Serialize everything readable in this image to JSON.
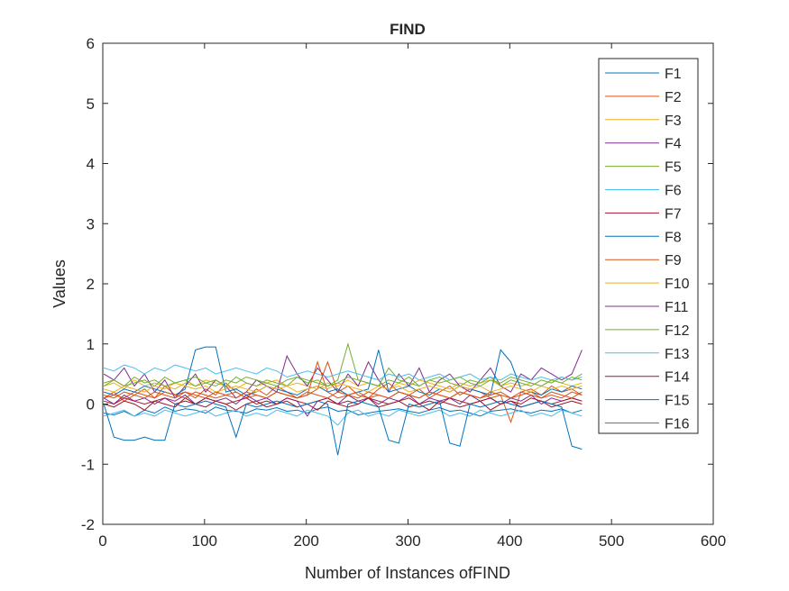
{
  "chart_data": {
    "type": "line",
    "title": "FIND",
    "xlabel": "Number of Instances ofFIND",
    "ylabel": "Values",
    "xlim": [
      0,
      600
    ],
    "ylim": [
      -2,
      6
    ],
    "xticks": [
      0,
      100,
      200,
      300,
      400,
      500,
      600
    ],
    "yticks": [
      -2,
      -1,
      0,
      1,
      2,
      3,
      4,
      5,
      6
    ],
    "grid": false,
    "legend_position": "top-right",
    "series": [
      {
        "name": "F1",
        "color": "#0072BD",
        "values": [
          -0.15,
          -0.18,
          -0.12,
          -0.2,
          -0.1,
          -0.15,
          -0.05,
          -0.12,
          -0.08,
          -0.1,
          -0.15,
          -0.05,
          -0.1,
          -0.12,
          -0.15,
          -0.08,
          -0.1,
          -0.06,
          -0.12,
          -0.1,
          -0.15,
          -0.08,
          -0.05,
          -0.12,
          -0.1,
          -0.18,
          -0.15,
          -0.12,
          -0.1,
          -0.08,
          -0.12,
          -0.15,
          -0.1,
          -0.06,
          -0.12,
          -0.1,
          -0.15,
          -0.2,
          -0.12,
          -0.1,
          -0.08,
          -0.12,
          -0.15,
          -0.1,
          -0.12,
          -0.08,
          -0.15,
          -0.1
        ]
      },
      {
        "name": "F2",
        "color": "#D95319",
        "values": [
          0.1,
          0.2,
          0.05,
          0.15,
          0.25,
          0.1,
          0.3,
          0.15,
          0.2,
          0.1,
          0.25,
          0.15,
          0.35,
          0.2,
          0.1,
          0.25,
          0.15,
          0.3,
          0.2,
          0.1,
          0.15,
          0.25,
          0.7,
          0.2,
          0.3,
          0.15,
          0.1,
          0.25,
          0.35,
          0.2,
          0.15,
          0.25,
          0.1,
          0.2,
          0.3,
          0.15,
          0.25,
          0.2,
          0.1,
          0.15,
          -0.3,
          0.2,
          0.25,
          0.15,
          0.3,
          0.2,
          0.25,
          0.15
        ]
      },
      {
        "name": "F3",
        "color": "#EDB120",
        "values": [
          0.3,
          0.35,
          0.25,
          0.4,
          0.3,
          0.35,
          0.3,
          0.25,
          0.35,
          0.3,
          0.4,
          0.35,
          0.3,
          0.25,
          0.35,
          0.3,
          0.35,
          0.4,
          0.3,
          0.35,
          0.3,
          0.25,
          0.35,
          0.3,
          0.4,
          0.3,
          0.35,
          0.3,
          0.25,
          0.35,
          0.3,
          0.4,
          0.35,
          0.3,
          0.25,
          0.35,
          0.3,
          0.35,
          0.4,
          0.3,
          0.35,
          0.3,
          0.35,
          0.3,
          0.4,
          0.35,
          0.3,
          0.35
        ]
      },
      {
        "name": "F4",
        "color": "#7E2F8E",
        "values": [
          0.5,
          0.4,
          0.6,
          0.3,
          0.5,
          0.2,
          0.4,
          0.1,
          0.3,
          0.5,
          0.2,
          0.4,
          0.3,
          0.1,
          0.2,
          0.4,
          0.3,
          0.2,
          0.8,
          0.5,
          0.3,
          0.6,
          0.4,
          0.2,
          0.5,
          0.3,
          0.7,
          0.4,
          0.2,
          0.5,
          0.3,
          0.6,
          0.2,
          0.4,
          0.5,
          0.3,
          0.2,
          0.4,
          0.6,
          0.3,
          0.2,
          0.5,
          0.4,
          0.6,
          0.5,
          0.4,
          0.5,
          0.9
        ]
      },
      {
        "name": "F5",
        "color": "#77AC30",
        "values": [
          0.3,
          0.4,
          0.3,
          0.35,
          0.4,
          0.3,
          0.45,
          0.35,
          0.4,
          0.3,
          0.35,
          0.4,
          0.3,
          0.45,
          0.35,
          0.3,
          0.4,
          0.35,
          0.3,
          0.45,
          0.4,
          0.35,
          0.3,
          0.4,
          1.0,
          0.4,
          0.35,
          0.3,
          0.6,
          0.4,
          0.35,
          0.3,
          0.4,
          0.45,
          0.35,
          0.3,
          0.4,
          0.35,
          0.45,
          0.3,
          0.4,
          0.35,
          0.3,
          0.4,
          0.35,
          0.45,
          0.4,
          0.5
        ]
      },
      {
        "name": "F6",
        "color": "#4DBEEE",
        "values": [
          0.6,
          0.55,
          0.65,
          0.6,
          0.5,
          0.6,
          0.55,
          0.65,
          0.6,
          0.55,
          0.6,
          0.5,
          0.55,
          0.6,
          0.55,
          0.5,
          0.6,
          0.55,
          0.45,
          0.5,
          0.55,
          0.5,
          0.45,
          0.5,
          0.55,
          0.5,
          0.45,
          0.4,
          0.5,
          0.45,
          0.5,
          0.4,
          0.45,
          0.5,
          0.4,
          0.45,
          0.5,
          0.4,
          0.45,
          0.4,
          0.5,
          0.45,
          0.4,
          0.45,
          0.4,
          0.45,
          0.4,
          0.45
        ]
      },
      {
        "name": "F7",
        "color": "#A2142F",
        "values": [
          0.0,
          -0.05,
          0.05,
          0.0,
          -0.1,
          0.05,
          0.0,
          -0.05,
          0.1,
          0.0,
          -0.05,
          0.05,
          0.0,
          -0.1,
          0.0,
          0.05,
          -0.05,
          0.0,
          0.05,
          -0.05,
          0.0,
          -0.1,
          0.05,
          0.0,
          -0.05,
          0.0,
          0.1,
          -0.05,
          0.0,
          0.05,
          -0.05,
          0.0,
          -0.1,
          0.05,
          0.0,
          -0.05,
          0.0,
          0.05,
          -0.1,
          0.0,
          0.05,
          -0.05,
          0.0,
          0.05,
          -0.05,
          0.0,
          0.05,
          0.0
        ]
      },
      {
        "name": "F8",
        "color": "#0072BD",
        "values": [
          0.2,
          0.15,
          0.25,
          0.2,
          0.3,
          0.25,
          0.2,
          0.15,
          0.25,
          0.9,
          0.95,
          0.95,
          0.2,
          0.25,
          0.15,
          0.2,
          0.3,
          0.25,
          0.2,
          0.15,
          0.25,
          0.3,
          0.2,
          0.25,
          0.15,
          0.2,
          0.25,
          0.9,
          0.2,
          0.25,
          0.3,
          0.2,
          0.15,
          0.25,
          0.2,
          0.3,
          0.25,
          0.2,
          0.15,
          0.9,
          0.7,
          0.25,
          0.2,
          0.15,
          0.25,
          0.2,
          0.3,
          0.25
        ]
      },
      {
        "name": "F9",
        "color": "#D95319",
        "values": [
          0.1,
          0.15,
          0.1,
          0.2,
          0.15,
          0.1,
          0.2,
          0.15,
          0.1,
          0.2,
          0.15,
          0.1,
          0.15,
          0.2,
          0.1,
          0.15,
          0.1,
          0.2,
          0.15,
          0.1,
          0.15,
          0.7,
          0.2,
          0.1,
          0.15,
          0.2,
          0.1,
          0.15,
          0.1,
          0.2,
          0.15,
          0.1,
          0.2,
          0.15,
          0.1,
          0.2,
          0.15,
          0.1,
          0.15,
          0.2,
          0.1,
          0.15,
          0.2,
          0.1,
          0.15,
          0.1,
          0.2,
          0.15
        ]
      },
      {
        "name": "F10",
        "color": "#EDB120",
        "values": [
          0.25,
          0.2,
          0.3,
          0.25,
          0.2,
          0.3,
          0.25,
          0.35,
          0.3,
          0.25,
          0.3,
          0.2,
          0.25,
          0.3,
          0.25,
          0.2,
          0.3,
          0.25,
          0.3,
          0.2,
          0.25,
          0.3,
          0.25,
          0.35,
          0.3,
          0.25,
          0.2,
          0.3,
          0.25,
          0.3,
          0.2,
          0.25,
          0.3,
          0.25,
          0.2,
          0.3,
          0.25,
          0.3,
          0.2,
          0.25,
          0.3,
          0.25,
          0.2,
          0.3,
          0.25,
          0.3,
          0.25,
          0.3
        ]
      },
      {
        "name": "F11",
        "color": "#7E2F8E",
        "values": [
          0.1,
          0.0,
          0.15,
          0.05,
          0.1,
          0.0,
          0.1,
          0.05,
          0.15,
          0.0,
          0.1,
          0.05,
          0.1,
          0.0,
          0.15,
          0.05,
          0.1,
          0.0,
          0.1,
          0.05,
          -0.2,
          0.05,
          0.1,
          0.0,
          0.15,
          0.05,
          0.1,
          0.0,
          0.1,
          0.05,
          0.15,
          0.0,
          0.1,
          0.05,
          0.1,
          0.0,
          0.15,
          0.05,
          0.1,
          0.0,
          0.1,
          0.05,
          0.15,
          0.0,
          0.1,
          0.05,
          0.1,
          0.05
        ]
      },
      {
        "name": "F12",
        "color": "#77AC30",
        "values": [
          0.35,
          0.4,
          0.3,
          0.45,
          0.35,
          0.4,
          0.3,
          0.35,
          0.4,
          0.45,
          0.35,
          0.3,
          0.4,
          0.35,
          0.45,
          0.4,
          0.35,
          0.3,
          0.4,
          0.45,
          0.35,
          0.4,
          0.3,
          0.35,
          0.45,
          0.4,
          0.35,
          0.3,
          0.4,
          0.35,
          0.45,
          0.3,
          0.4,
          0.35,
          0.4,
          0.45,
          0.35,
          0.3,
          0.4,
          0.35,
          0.45,
          0.4,
          0.35,
          0.3,
          0.4,
          0.35,
          0.45,
          0.4
        ]
      },
      {
        "name": "F13",
        "color": "#4DBEEE",
        "values": [
          -0.2,
          -0.15,
          -0.1,
          -0.2,
          -0.15,
          -0.2,
          -0.1,
          -0.15,
          -0.2,
          -0.15,
          -0.1,
          -0.2,
          -0.15,
          -0.1,
          -0.2,
          -0.15,
          -0.2,
          -0.1,
          -0.15,
          -0.2,
          -0.1,
          -0.15,
          -0.2,
          -0.35,
          -0.15,
          -0.1,
          -0.2,
          -0.15,
          -0.2,
          -0.1,
          -0.15,
          -0.2,
          -0.15,
          -0.1,
          -0.2,
          -0.15,
          -0.2,
          -0.1,
          -0.15,
          -0.2,
          -0.15,
          -0.1,
          -0.2,
          -0.15,
          -0.2,
          -0.1,
          -0.15,
          -0.2
        ]
      },
      {
        "name": "F14",
        "color": "#A2142F",
        "values": [
          0.05,
          0.0,
          0.1,
          0.05,
          0.0,
          0.05,
          0.1,
          0.0,
          0.05,
          0.0,
          0.1,
          0.05,
          0.0,
          0.05,
          0.1,
          0.0,
          0.05,
          0.0,
          0.1,
          0.05,
          0.0,
          0.05,
          0.1,
          0.0,
          0.05,
          0.0,
          0.1,
          0.05,
          0.0,
          0.05,
          0.1,
          0.0,
          0.05,
          0.0,
          0.1,
          0.05,
          0.0,
          0.05,
          0.1,
          0.0,
          0.05,
          0.0,
          0.1,
          0.05,
          0.0,
          0.05,
          0.1,
          0.05
        ]
      },
      {
        "name": "F15",
        "color": "#0072BD",
        "values": [
          0.0,
          -0.55,
          -0.6,
          -0.6,
          -0.55,
          -0.6,
          -0.6,
          0.0,
          -0.05,
          0.0,
          0.05,
          0.0,
          -0.05,
          -0.55,
          0.0,
          -0.05,
          0.0,
          0.05,
          0.0,
          -0.05,
          0.0,
          0.05,
          0.0,
          -0.85,
          0.0,
          0.05,
          0.0,
          -0.05,
          -0.6,
          -0.65,
          0.0,
          -0.05,
          0.0,
          0.05,
          -0.65,
          -0.7,
          0.0,
          -0.05,
          0.0,
          0.05,
          0.0,
          -0.05,
          0.0,
          0.05,
          0.0,
          -0.05,
          -0.7,
          -0.75
        ]
      },
      {
        "name": "F16",
        "color": "#D95319",
        "values": [
          0.15,
          0.1,
          0.2,
          0.15,
          0.1,
          0.2,
          0.15,
          0.1,
          0.2,
          0.15,
          0.1,
          0.2,
          0.15,
          0.1,
          0.2,
          0.15,
          0.1,
          0.2,
          0.15,
          0.1,
          0.2,
          0.15,
          0.1,
          0.2,
          0.15,
          0.1,
          0.2,
          0.15,
          0.1,
          0.2,
          0.15,
          0.1,
          0.2,
          0.15,
          0.1,
          0.2,
          0.15,
          0.1,
          0.2,
          0.15,
          0.1,
          0.2,
          0.15,
          0.1,
          0.2,
          0.15,
          0.1,
          0.2
        ]
      }
    ],
    "x": [
      1,
      11,
      21,
      31,
      41,
      51,
      61,
      71,
      81,
      91,
      101,
      111,
      121,
      131,
      141,
      151,
      161,
      171,
      181,
      191,
      201,
      211,
      221,
      231,
      241,
      251,
      261,
      271,
      281,
      291,
      301,
      311,
      321,
      331,
      341,
      351,
      361,
      371,
      381,
      391,
      401,
      411,
      421,
      431,
      441,
      451,
      461,
      471
    ]
  }
}
